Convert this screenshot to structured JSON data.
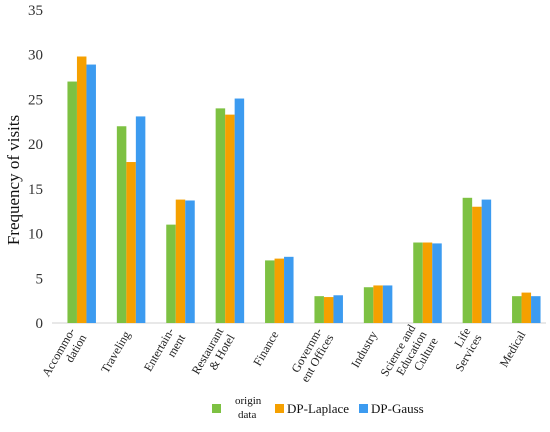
{
  "chart_data": {
    "type": "bar",
    "ylabel": "Frequency of visits",
    "xlabel": "",
    "ylim": [
      0,
      35
    ],
    "yticks": [
      0,
      5,
      10,
      15,
      20,
      25,
      30,
      35
    ],
    "grid": false,
    "legend_position": "bottom",
    "categories": [
      [
        "Accommo-",
        "dation"
      ],
      [
        "Traveling"
      ],
      [
        "Entertain-",
        "ment"
      ],
      [
        "Restaurant",
        "& Hotel"
      ],
      [
        "Finance"
      ],
      [
        "Governm-",
        "ent Offices"
      ],
      [
        "Industry"
      ],
      [
        "Science and",
        "Education",
        "Culture"
      ],
      [
        "Life",
        "Services"
      ],
      [
        "Medical"
      ]
    ],
    "series": [
      {
        "name": "origin data",
        "name_lines": [
          "origin",
          "data"
        ],
        "color": "#7dc142",
        "values": [
          27,
          22,
          11,
          24,
          7,
          3,
          4,
          9,
          14,
          3
        ]
      },
      {
        "name": "DP-Laplace",
        "color": "#f5a000",
        "values": [
          29.8,
          18,
          13.8,
          23.3,
          7.2,
          2.9,
          4.2,
          9,
          13,
          3.4
        ]
      },
      {
        "name": "DP-Gauss",
        "color": "#3c9bf0",
        "values": [
          28.9,
          23.1,
          13.7,
          25.1,
          7.4,
          3.1,
          4.2,
          8.9,
          13.8,
          3
        ]
      }
    ]
  }
}
